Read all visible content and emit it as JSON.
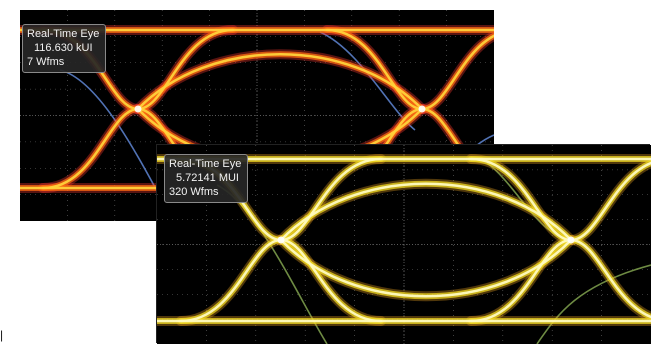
{
  "scopes": [
    {
      "id": "back",
      "label": "Real-Time Eye",
      "ui_count": "116.630 kUI",
      "waveforms": "7 Wfms",
      "colors": {
        "background": "#000000",
        "trace": "#ff6a10",
        "hot": "#ffd23a",
        "warm": "#ff3a30",
        "cool": "#5a7ec8",
        "grid": "#6a6a6a"
      }
    },
    {
      "id": "front",
      "label": "Real-Time Eye",
      "ui_count": "5.72141 MUI",
      "waveforms": "320 Wfms",
      "colors": {
        "background": "#000000",
        "trace": "#f0d820",
        "hot": "#fffbc0",
        "warm": "#e8a020",
        "cool": "#7a9a4a",
        "grid": "#6a6a6a"
      }
    }
  ],
  "corner_text": "|"
}
